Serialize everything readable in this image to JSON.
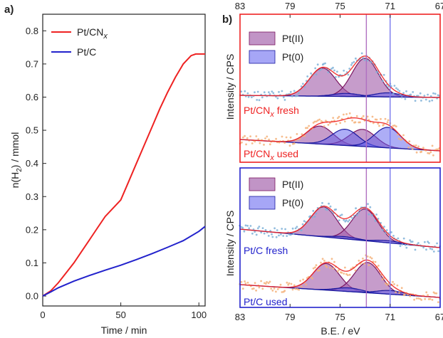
{
  "panel_a": {
    "letter": "a)",
    "legend": {
      "pt_cnx_base": "Pt/CN",
      "pt_cnx_sub": "x",
      "pt_c": "Pt/C"
    }
  },
  "panel_b": {
    "letter": "b)",
    "ylabel": "Intensity / CPS",
    "legend_pt2": "Pt(II)",
    "legend_pt0": "Pt(0)",
    "labels": {
      "cnx_fresh_a": "Pt/CN",
      "cnx_fresh_sub": "x",
      "cnx_fresh_b": " fresh",
      "cnx_used_a": "Pt/CN",
      "cnx_used_sub": "x",
      "cnx_used_b": " used",
      "c_fresh": "Pt/C fresh",
      "c_used": "Pt/C used"
    }
  },
  "colors": {
    "red": "#ee2222",
    "blue": "#2222cc",
    "pt2_fill": "#a05aa8",
    "pt0_fill": "#5c5cee",
    "pt2_line": "#7a1560",
    "pt0_line": "#1a1aa0",
    "fresh_dots": "#7fb2d8",
    "used_dots": "#f4b27a"
  },
  "chart_data": [
    {
      "type": "line",
      "xlabel_a": "Time / min",
      "ylabel_a": "n(H",
      "ylabel_sub": "2",
      "ylabel_b": ") / mmol",
      "xlim": [
        0,
        104
      ],
      "ylim": [
        -0.03,
        0.85
      ],
      "xticks": [
        0,
        50,
        100
      ],
      "yticks": [
        0.0,
        0.1,
        0.2,
        0.3,
        0.4,
        0.5,
        0.6,
        0.7,
        0.8
      ],
      "series": [
        {
          "name": "Pt/CNx",
          "color": "#ee2222",
          "x": [
            0,
            5,
            10,
            15,
            20,
            25,
            30,
            35,
            40,
            45,
            50,
            55,
            60,
            65,
            70,
            75,
            80,
            85,
            90,
            95,
            98,
            100,
            104
          ],
          "y": [
            0,
            0.015,
            0.04,
            0.07,
            0.1,
            0.135,
            0.17,
            0.205,
            0.24,
            0.265,
            0.29,
            0.345,
            0.4,
            0.455,
            0.51,
            0.565,
            0.615,
            0.66,
            0.7,
            0.725,
            0.73,
            0.73,
            0.73
          ]
        },
        {
          "name": "Pt/C",
          "color": "#2222cc",
          "x": [
            0,
            5,
            10,
            20,
            30,
            40,
            50,
            60,
            70,
            80,
            90,
            100,
            104
          ],
          "y": [
            0,
            0.012,
            0.025,
            0.045,
            0.062,
            0.078,
            0.093,
            0.11,
            0.128,
            0.147,
            0.167,
            0.195,
            0.21
          ]
        }
      ]
    },
    {
      "type": "area",
      "xlabel": "B.E. / eV",
      "xlim": [
        83,
        67
      ],
      "xticks": [
        83,
        79,
        75,
        71,
        67
      ],
      "reference_lines": [
        {
          "x": 72.9,
          "species": "Pt(II)"
        },
        {
          "x": 71.0,
          "species": "Pt(0)"
        }
      ],
      "spectra": [
        {
          "label": "Pt/CNx fresh",
          "components": [
            {
              "species": "Pt(II)",
              "center": 76.4,
              "height": 0.55
            },
            {
              "species": "Pt(II)",
              "center": 73.0,
              "height": 0.75
            },
            {
              "species": "Pt(0)",
              "center": 74.5,
              "height": 0.06
            },
            {
              "species": "Pt(0)",
              "center": 71.2,
              "height": 0.08
            }
          ]
        },
        {
          "label": "Pt/CNx used",
          "components": [
            {
              "species": "Pt(II)",
              "center": 76.6,
              "height": 0.42
            },
            {
              "species": "Pt(II)",
              "center": 73.2,
              "height": 0.4
            },
            {
              "species": "Pt(0)",
              "center": 74.6,
              "height": 0.38
            },
            {
              "species": "Pt(0)",
              "center": 71.2,
              "height": 0.48
            }
          ]
        },
        {
          "label": "Pt/C fresh",
          "components": [
            {
              "species": "Pt(II)",
              "center": 76.3,
              "height": 0.7
            },
            {
              "species": "Pt(II)",
              "center": 73.0,
              "height": 0.74
            },
            {
              "species": "Pt(0)",
              "center": 74.6,
              "height": 0.05
            },
            {
              "species": "Pt(0)",
              "center": 71.2,
              "height": 0.05
            }
          ]
        },
        {
          "label": "Pt/C used",
          "components": [
            {
              "species": "Pt(II)",
              "center": 76.1,
              "height": 0.72
            },
            {
              "species": "Pt(II)",
              "center": 72.8,
              "height": 0.82
            },
            {
              "species": "Pt(0)",
              "center": 74.3,
              "height": 0.1
            },
            {
              "species": "Pt(0)",
              "center": 71.0,
              "height": 0.1
            }
          ]
        }
      ]
    }
  ]
}
